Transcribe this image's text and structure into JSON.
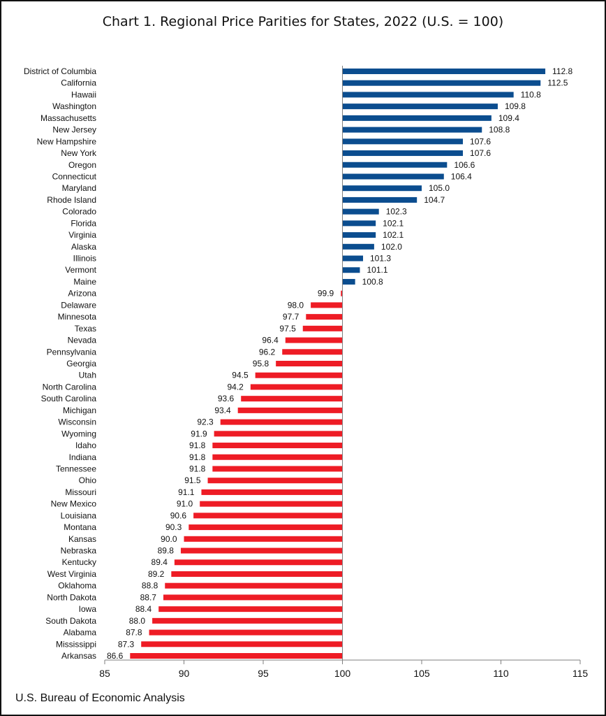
{
  "chart_data": {
    "type": "bar",
    "orientation": "horizontal",
    "title": "Chart 1. Regional Price Parities for States, 2022 (U.S. = 100)",
    "baseline": 100,
    "xlim": [
      85,
      115
    ],
    "xticks": [
      85,
      90,
      95,
      100,
      105,
      110,
      115
    ],
    "grid": false,
    "colors": {
      "above": "#0b4d8f",
      "below": "#ee1c25"
    },
    "categories": [
      "District of Columbia",
      "California",
      "Hawaii",
      "Washington",
      "Massachusetts",
      "New Jersey",
      "New Hampshire",
      "New York",
      "Oregon",
      "Connecticut",
      "Maryland",
      "Rhode Island",
      "Colorado",
      "Florida",
      "Virginia",
      "Alaska",
      "Illinois",
      "Vermont",
      "Maine",
      "Arizona",
      "Delaware",
      "Minnesota",
      "Texas",
      "Nevada",
      "Pennsylvania",
      "Georgia",
      "Utah",
      "North Carolina",
      "South Carolina",
      "Michigan",
      "Wisconsin",
      "Wyoming",
      "Idaho",
      "Indiana",
      "Tennessee",
      "Ohio",
      "Missouri",
      "New Mexico",
      "Louisiana",
      "Montana",
      "Kansas",
      "Nebraska",
      "Kentucky",
      "West Virginia",
      "Oklahoma",
      "North Dakota",
      "Iowa",
      "South Dakota",
      "Alabama",
      "Mississippi",
      "Arkansas"
    ],
    "values": [
      112.8,
      112.5,
      110.8,
      109.8,
      109.4,
      108.8,
      107.6,
      107.6,
      106.6,
      106.4,
      105.0,
      104.7,
      102.3,
      102.1,
      102.1,
      102.0,
      101.3,
      101.1,
      100.8,
      99.9,
      98.0,
      97.7,
      97.5,
      96.4,
      96.2,
      95.8,
      94.5,
      94.2,
      93.6,
      93.4,
      92.3,
      91.9,
      91.8,
      91.8,
      91.8,
      91.5,
      91.1,
      91.0,
      90.6,
      90.3,
      90.0,
      89.8,
      89.4,
      89.2,
      88.8,
      88.7,
      88.4,
      88.0,
      87.8,
      87.3,
      86.6
    ],
    "value_labels": [
      "112.8",
      "112.5",
      "110.8",
      "109.8",
      "109.4",
      "108.8",
      "107.6",
      "107.6",
      "106.6",
      "106.4",
      "105.0",
      "104.7",
      "102.3",
      "102.1",
      "102.1",
      "102.0",
      "101.3",
      "101.1",
      "100.8",
      "99.9",
      "98.0",
      "97.7",
      "97.5",
      "96.4",
      "96.2",
      "95.8",
      "94.5",
      "94.2",
      "93.6",
      "93.4",
      "92.3",
      "91.9",
      "91.8",
      "91.8",
      "91.8",
      "91.5",
      "91.1",
      "91.0",
      "90.6",
      "90.3",
      "90.0",
      "89.8",
      "89.4",
      "89.2",
      "88.8",
      "88.7",
      "88.4",
      "88.0",
      "87.8",
      "87.3",
      "86.6"
    ]
  },
  "footer": {
    "source": "U.S. Bureau of Economic Analysis"
  }
}
